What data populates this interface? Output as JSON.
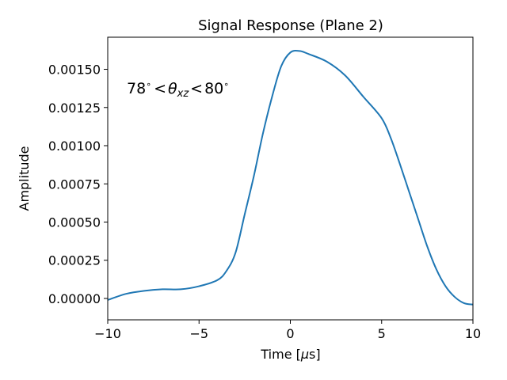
{
  "chart_data": {
    "type": "line",
    "title": "Signal Response (Plane 2)",
    "xlabel": "Time [μs]",
    "xlabel_prefix": "Time [",
    "xlabel_mu": "μ",
    "xlabel_suffix": "s]",
    "ylabel": "Amplitude",
    "xlim": [
      -10,
      10
    ],
    "ylim": [
      -0.00014,
      0.00171
    ],
    "x_ticks": [
      -10,
      -5,
      0,
      5,
      10
    ],
    "x_tick_labels": [
      "−10",
      "−5",
      "0",
      "5",
      "10"
    ],
    "y_ticks": [
      0.0,
      0.00025,
      0.0005,
      0.00075,
      0.001,
      0.00125,
      0.0015
    ],
    "y_tick_labels": [
      "0.00000",
      "0.00025",
      "0.00050",
      "0.00075",
      "0.00100",
      "0.00125",
      "0.00150"
    ],
    "grid": false,
    "annotation": {
      "text": "78° < θxz < 80°",
      "parts": {
        "left": "78",
        "deg": "∘",
        "lt": "<",
        "theta": "θ",
        "sub": "xz",
        "right": "80"
      },
      "x": -9.1,
      "y": 0.00138
    },
    "series": [
      {
        "color": "#1f77b4",
        "x": [
          -10,
          -9,
          -8,
          -7,
          -6,
          -5,
          -4,
          -3.5,
          -3,
          -2.5,
          -2,
          -1.5,
          -1,
          -0.5,
          0,
          0.5,
          1,
          2,
          3,
          4,
          5,
          5.5,
          6,
          6.5,
          7,
          7.5,
          8,
          8.5,
          9,
          9.5,
          10
        ],
        "y": [
          -1e-05,
          3e-05,
          5e-05,
          6e-05,
          6e-05,
          8e-05,
          0.00012,
          0.00018,
          0.0003,
          0.00055,
          0.0008,
          0.00108,
          0.00132,
          0.00152,
          0.00161,
          0.00162,
          0.0016,
          0.00155,
          0.00146,
          0.00132,
          0.00118,
          0.00105,
          0.00088,
          0.0007,
          0.00052,
          0.00034,
          0.00019,
          8e-05,
          1e-05,
          -3e-05,
          -4e-05
        ]
      }
    ]
  }
}
